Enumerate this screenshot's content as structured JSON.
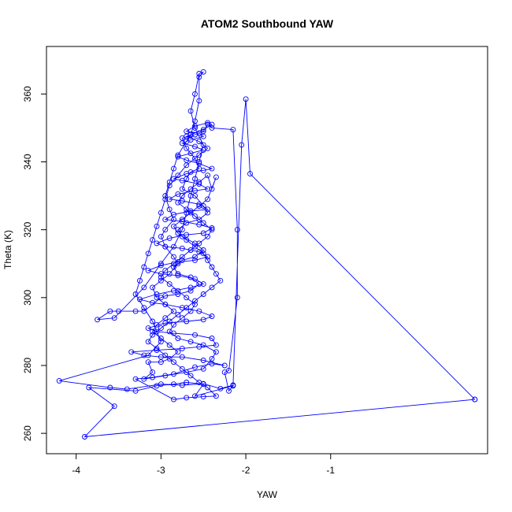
{
  "chart_data": {
    "type": "line",
    "title": "ATOM2 Southbound YAW",
    "xlabel": "YAW",
    "ylabel": "Theta (K)",
    "xlim": [
      -4.35,
      0.85
    ],
    "ylim": [
      254,
      374
    ],
    "xticks": [
      -4,
      -3,
      -2,
      -1
    ],
    "yticks": [
      260,
      280,
      300,
      320,
      340,
      360
    ],
    "grid": false,
    "marker": "open-circle",
    "series_color": "#0000ff",
    "series": [
      {
        "points": [
          [
            0.7,
            270
          ],
          [
            -3.9,
            259
          ],
          [
            -3.55,
            268
          ],
          [
            -3.85,
            273.5
          ],
          [
            -3.3,
            272.5
          ],
          [
            -3.05,
            274
          ],
          [
            -2.85,
            274.5
          ],
          [
            -2.7,
            275
          ],
          [
            -2.5,
            274.5
          ],
          [
            -2.6,
            271
          ],
          [
            -2.15,
            274
          ],
          [
            -2.2,
            272.5
          ],
          [
            -2.25,
            278
          ],
          [
            -2.2,
            278.5
          ],
          [
            -2.1,
            300
          ],
          [
            -2.1,
            320
          ],
          [
            -2.15,
            349.5
          ],
          [
            -2.4,
            350
          ],
          [
            -2.45,
            351
          ],
          [
            -2.5,
            349
          ],
          [
            -2.6,
            348
          ],
          [
            -2.75,
            347
          ],
          [
            -2.7,
            344
          ],
          [
            -2.6,
            341
          ],
          [
            -2.55,
            338
          ],
          [
            -2.65,
            337
          ],
          [
            -2.7,
            335
          ],
          [
            -2.75,
            332
          ],
          [
            -2.6,
            330
          ],
          [
            -2.5,
            327
          ],
          [
            -2.45,
            325
          ],
          [
            -2.55,
            323
          ],
          [
            -2.7,
            322
          ],
          [
            -2.8,
            320
          ],
          [
            -2.75,
            318
          ],
          [
            -2.6,
            316
          ],
          [
            -2.5,
            314
          ],
          [
            -2.6,
            312
          ],
          [
            -2.75,
            311
          ],
          [
            -2.85,
            309
          ],
          [
            -2.8,
            307
          ],
          [
            -2.65,
            306
          ],
          [
            -2.55,
            304
          ],
          [
            -2.65,
            302
          ],
          [
            -2.8,
            301
          ],
          [
            -2.95,
            300.5
          ],
          [
            -3.0,
            300
          ],
          [
            -3.2,
            296
          ],
          [
            -3.3,
            296
          ],
          [
            -3.5,
            296
          ],
          [
            -3.6,
            296
          ],
          [
            -3.75,
            293.5
          ],
          [
            -3.55,
            294
          ],
          [
            -3.2,
            303
          ],
          [
            -3.0,
            310
          ],
          [
            -2.85,
            315
          ],
          [
            -2.75,
            320
          ],
          [
            -2.7,
            325
          ],
          [
            -2.65,
            330
          ],
          [
            -2.6,
            335
          ],
          [
            -2.55,
            340
          ],
          [
            -2.5,
            345
          ],
          [
            -2.6,
            350
          ],
          [
            -2.65,
            355
          ],
          [
            -2.6,
            360
          ],
          [
            -2.55,
            366
          ],
          [
            -2.5,
            366.5
          ],
          [
            -2.55,
            365
          ],
          [
            -2.55,
            358
          ],
          [
            -2.6,
            352
          ],
          [
            -2.65,
            348
          ],
          [
            -2.7,
            346
          ],
          [
            -2.8,
            342
          ],
          [
            -2.85,
            338
          ],
          [
            -2.9,
            334
          ],
          [
            -2.95,
            330
          ],
          [
            -2.9,
            326
          ],
          [
            -2.85,
            323
          ],
          [
            -2.95,
            320
          ],
          [
            -3.0,
            318
          ],
          [
            -2.95,
            315
          ],
          [
            -2.85,
            312
          ],
          [
            -2.8,
            310
          ],
          [
            -2.9,
            307
          ],
          [
            -3.0,
            305
          ],
          [
            -3.1,
            303
          ],
          [
            -3.05,
            300
          ],
          [
            -2.95,
            298
          ],
          [
            -2.85,
            296
          ],
          [
            -2.95,
            294
          ],
          [
            -3.05,
            292
          ],
          [
            -3.1,
            290
          ],
          [
            -3.0,
            288
          ],
          [
            -2.9,
            286
          ],
          [
            -2.8,
            284
          ],
          [
            -2.9,
            282
          ],
          [
            -3.0,
            281
          ],
          [
            -3.15,
            281
          ],
          [
            -3.1,
            278
          ],
          [
            -3.2,
            276
          ],
          [
            -2.95,
            277
          ],
          [
            -2.7,
            278
          ],
          [
            -2.5,
            279
          ],
          [
            -2.4,
            282
          ],
          [
            -2.35,
            284
          ],
          [
            -2.5,
            286
          ],
          [
            -2.65,
            287
          ],
          [
            -2.8,
            288
          ],
          [
            -2.9,
            290
          ],
          [
            -2.85,
            292
          ],
          [
            -2.75,
            294
          ],
          [
            -2.65,
            296
          ],
          [
            -2.6,
            298
          ],
          [
            -2.7,
            300
          ],
          [
            -2.8,
            302
          ],
          [
            -2.9,
            304
          ],
          [
            -3.0,
            306
          ],
          [
            -2.95,
            308
          ],
          [
            -2.85,
            310
          ],
          [
            -2.75,
            312
          ],
          [
            -2.65,
            314
          ],
          [
            -2.55,
            316
          ],
          [
            -2.45,
            318
          ],
          [
            -2.4,
            320
          ],
          [
            -2.5,
            322
          ],
          [
            -2.6,
            324
          ],
          [
            -2.7,
            326
          ],
          [
            -2.8,
            328
          ],
          [
            -2.75,
            330
          ],
          [
            -2.65,
            332
          ],
          [
            -2.55,
            334
          ],
          [
            -2.45,
            336
          ],
          [
            -2.4,
            332
          ],
          [
            -2.35,
            335.5
          ],
          [
            -2.45,
            329
          ],
          [
            -2.55,
            327
          ],
          [
            -2.65,
            325
          ],
          [
            -2.75,
            323
          ],
          [
            -2.85,
            321
          ],
          [
            -2.8,
            319
          ],
          [
            -2.7,
            317
          ],
          [
            -2.6,
            315
          ],
          [
            -2.5,
            313
          ],
          [
            -2.45,
            311
          ],
          [
            -2.4,
            309
          ],
          [
            -2.35,
            307
          ],
          [
            -2.3,
            305
          ],
          [
            -2.4,
            303
          ],
          [
            -2.5,
            301
          ],
          [
            -2.6,
            299
          ],
          [
            -2.7,
            297
          ],
          [
            -2.8,
            295
          ],
          [
            -2.9,
            293
          ],
          [
            -3.0,
            291
          ],
          [
            -3.1,
            289
          ],
          [
            -3.15,
            287
          ],
          [
            -3.05,
            285
          ],
          [
            -2.95,
            283
          ],
          [
            -2.85,
            281
          ],
          [
            -2.75,
            279
          ],
          [
            -2.65,
            277
          ],
          [
            -2.55,
            275
          ],
          [
            -2.45,
            273.5
          ],
          [
            -2.35,
            271
          ],
          [
            -2.5,
            270.8
          ],
          [
            -2.7,
            270.5
          ],
          [
            -2.85,
            270
          ],
          [
            -3.3,
            276
          ],
          [
            -3.1,
            276.5
          ],
          [
            -2.85,
            277.5
          ],
          [
            -2.6,
            279.5
          ],
          [
            -2.4,
            280.5
          ],
          [
            -2.25,
            280
          ],
          [
            -2.5,
            281.5
          ],
          [
            -2.75,
            282.5
          ],
          [
            -3.0,
            282.5
          ],
          [
            -3.2,
            283
          ],
          [
            -3.35,
            284
          ],
          [
            -3.05,
            284.5
          ],
          [
            -2.75,
            285
          ],
          [
            -2.55,
            285.5
          ],
          [
            -2.35,
            286
          ],
          [
            -2.4,
            288
          ],
          [
            -2.6,
            289
          ],
          [
            -2.85,
            289.5
          ],
          [
            -3.05,
            290
          ],
          [
            -3.15,
            291
          ],
          [
            -2.95,
            292.5
          ],
          [
            -2.7,
            293
          ],
          [
            -2.5,
            293.5
          ],
          [
            -2.4,
            294.5
          ],
          [
            -2.55,
            296
          ],
          [
            -2.75,
            297
          ],
          [
            -2.95,
            298
          ],
          [
            -3.1,
            298.5
          ],
          [
            -3.25,
            299.5
          ],
          [
            -3.05,
            301
          ],
          [
            -2.85,
            302
          ],
          [
            -2.65,
            303
          ],
          [
            -2.5,
            304
          ],
          [
            -2.6,
            305.5
          ],
          [
            -2.8,
            306.5
          ],
          [
            -3.0,
            307
          ],
          [
            -3.15,
            308
          ],
          [
            -3.0,
            309.5
          ],
          [
            -2.8,
            310.5
          ],
          [
            -2.6,
            311
          ],
          [
            -2.45,
            312
          ],
          [
            -2.55,
            313.5
          ],
          [
            -2.75,
            314.5
          ],
          [
            -2.95,
            315
          ],
          [
            -3.05,
            316
          ],
          [
            -2.9,
            317.5
          ],
          [
            -2.7,
            318.5
          ],
          [
            -2.5,
            319
          ],
          [
            -2.4,
            320.5
          ],
          [
            -2.55,
            321.5
          ],
          [
            -2.75,
            322.5
          ],
          [
            -2.95,
            323
          ],
          [
            -2.85,
            324.5
          ],
          [
            -2.65,
            325.5
          ],
          [
            -2.45,
            326
          ],
          [
            -2.55,
            327.5
          ],
          [
            -2.75,
            328.5
          ],
          [
            -2.9,
            329
          ],
          [
            -2.8,
            330.5
          ],
          [
            -2.6,
            331.5
          ],
          [
            -2.45,
            332
          ],
          [
            -2.55,
            333.5
          ],
          [
            -2.75,
            334.5
          ],
          [
            -2.85,
            335
          ],
          [
            -2.7,
            336.5
          ],
          [
            -2.5,
            337.5
          ],
          [
            -2.4,
            338
          ],
          [
            -2.55,
            339.5
          ],
          [
            -2.7,
            340.5
          ],
          [
            -2.8,
            341.5
          ],
          [
            -2.65,
            342.5
          ],
          [
            -2.5,
            343.5
          ],
          [
            -2.6,
            344.5
          ],
          [
            -2.75,
            345.5
          ],
          [
            -2.65,
            346.5
          ],
          [
            -2.5,
            347.5
          ],
          [
            -2.55,
            348.5
          ],
          [
            -2.7,
            349
          ],
          [
            -2.6,
            350.5
          ],
          [
            -2.45,
            351.5
          ],
          [
            -2.4,
            351
          ],
          [
            -2.5,
            349.5
          ],
          [
            -2.65,
            348
          ],
          [
            -2.7,
            347.5
          ],
          [
            -2.55,
            346
          ],
          [
            -2.45,
            344
          ],
          [
            -2.55,
            342
          ],
          [
            -2.7,
            339
          ],
          [
            -2.8,
            336
          ],
          [
            -2.9,
            333
          ],
          [
            -2.95,
            329
          ],
          [
            -3.0,
            325
          ],
          [
            -3.05,
            321
          ],
          [
            -3.1,
            317
          ],
          [
            -3.15,
            313
          ],
          [
            -3.2,
            309
          ],
          [
            -3.25,
            305
          ],
          [
            -3.3,
            301
          ],
          [
            -3.2,
            297
          ],
          [
            -3.1,
            293
          ],
          [
            -3.0,
            287
          ],
          [
            -3.15,
            283
          ],
          [
            -4.2,
            275.5
          ],
          [
            -3.6,
            273.5
          ],
          [
            -3.4,
            273
          ],
          [
            -3.0,
            274.5
          ],
          [
            -2.75,
            274.2
          ],
          [
            -2.5,
            274.6
          ],
          [
            -2.3,
            273.2
          ],
          [
            -2.15,
            274.2
          ],
          [
            -2.05,
            345
          ],
          [
            -2.0,
            358.5
          ],
          [
            -1.95,
            336.5
          ],
          [
            0.7,
            270
          ]
        ]
      }
    ]
  }
}
